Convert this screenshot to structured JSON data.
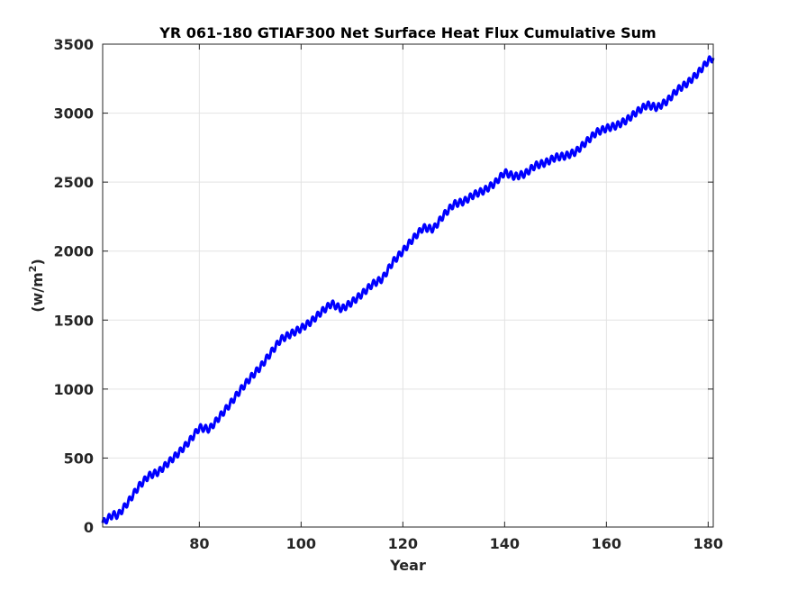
{
  "chart_data": {
    "type": "line",
    "title": "YR 061-180 GTIAF300 Net Surface Heat Flux  Cumulative Sum",
    "xlabel": "Year",
    "ylabel": "(w/m",
    "ylabel_sup": "2",
    "ylabel_close": ")",
    "xlim": [
      61,
      181
    ],
    "ylim": [
      0,
      3500
    ],
    "x_ticks": [
      80,
      100,
      120,
      140,
      160,
      180
    ],
    "y_ticks": [
      0,
      500,
      1000,
      1500,
      2000,
      2500,
      3000,
      3500
    ],
    "grid": true,
    "line_color": "#0000ff",
    "seasonal_amplitude": 25,
    "series": [
      {
        "x": [
          61,
          63,
          64,
          66,
          68,
          70,
          72,
          74,
          76,
          78,
          80,
          82,
          84,
          86,
          88,
          90,
          92,
          94,
          96,
          98,
          100,
          102,
          104,
          106,
          108,
          110,
          112,
          114,
          116,
          118,
          120,
          122,
          124,
          126,
          128,
          130,
          132,
          134,
          136,
          138,
          140,
          142,
          144,
          146,
          148,
          150,
          152,
          154,
          156,
          158,
          160,
          162,
          164,
          166,
          168,
          170,
          172,
          174,
          176,
          178,
          180,
          181
        ],
        "y": [
          30,
          90,
          85,
          180,
          290,
          370,
          400,
          470,
          540,
          620,
          720,
          710,
          800,
          890,
          990,
          1080,
          1160,
          1260,
          1360,
          1400,
          1440,
          1490,
          1560,
          1620,
          1580,
          1630,
          1690,
          1760,
          1800,
          1920,
          2000,
          2090,
          2170,
          2160,
          2260,
          2340,
          2360,
          2410,
          2440,
          2490,
          2570,
          2540,
          2560,
          2620,
          2640,
          2680,
          2690,
          2720,
          2790,
          2860,
          2890,
          2910,
          2950,
          3010,
          3060,
          3040,
          3090,
          3170,
          3220,
          3290,
          3380,
          3400
        ]
      }
    ]
  }
}
